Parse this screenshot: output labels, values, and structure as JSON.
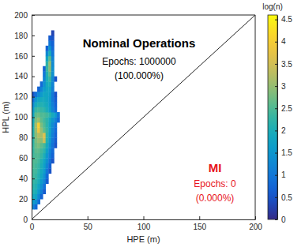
{
  "chart_data": {
    "type": "heatmap",
    "x_label": "HPE (m)",
    "y_label": "HPL (m)",
    "xlim": [
      0,
      200
    ],
    "xticks": [
      0,
      50,
      100,
      150,
      200
    ],
    "ylim": [
      0,
      200
    ],
    "yticks": [
      0,
      20,
      40,
      60,
      80,
      100,
      120,
      140,
      160,
      180,
      200
    ],
    "x_bins": [
      0,
      2.5,
      5,
      7.5,
      10,
      12.5,
      15,
      17.5,
      20,
      22.5,
      25
    ],
    "y_bins": [
      0,
      5,
      10,
      15,
      20,
      25,
      30,
      35,
      40,
      45,
      50,
      55,
      60,
      65,
      70,
      75,
      80,
      85,
      90,
      95,
      100,
      105,
      110,
      115,
      120,
      125,
      130,
      135,
      140,
      145,
      150,
      155,
      160,
      165,
      170,
      175,
      180,
      185
    ],
    "cells": [
      [
        null,
        null,
        null,
        null,
        null,
        null,
        null,
        null,
        null,
        null
      ],
      [
        null,
        null,
        null,
        null,
        null,
        null,
        null,
        null,
        null,
        null
      ],
      [
        1.2,
        0.8,
        null,
        null,
        null,
        null,
        null,
        null,
        null,
        null
      ],
      [
        1.6,
        1.4,
        0.9,
        null,
        null,
        null,
        null,
        null,
        null,
        null
      ],
      [
        1.9,
        1.8,
        1.3,
        0.7,
        null,
        null,
        null,
        null,
        null,
        null
      ],
      [
        2.1,
        2.0,
        1.6,
        1.1,
        0.6,
        null,
        null,
        null,
        null,
        null
      ],
      [
        2.2,
        2.1,
        1.8,
        1.4,
        0.9,
        null,
        null,
        null,
        null,
        null
      ],
      [
        2.3,
        2.2,
        2.0,
        1.6,
        1.2,
        0.6,
        null,
        null,
        null,
        null
      ],
      [
        2.4,
        2.3,
        2.1,
        1.8,
        1.4,
        0.8,
        null,
        null,
        null,
        null
      ],
      [
        2.4,
        2.4,
        2.2,
        1.9,
        1.6,
        1.0,
        0.5,
        null,
        null,
        null
      ],
      [
        2.5,
        2.4,
        2.3,
        2.0,
        1.7,
        1.2,
        0.7,
        null,
        null,
        null
      ],
      [
        2.5,
        2.5,
        2.4,
        2.1,
        1.8,
        1.4,
        0.9,
        0.5,
        null,
        null
      ],
      [
        2.4,
        2.5,
        2.5,
        2.3,
        2.0,
        1.5,
        1.1,
        0.7,
        null,
        null
      ],
      [
        2.3,
        2.6,
        2.6,
        2.4,
        2.2,
        1.7,
        1.2,
        0.8,
        null,
        null
      ],
      [
        2.3,
        2.7,
        2.8,
        2.6,
        2.4,
        1.9,
        1.4,
        0.9,
        0.5,
        null
      ],
      [
        2.2,
        2.8,
        3.0,
        2.9,
        3.4,
        2.1,
        1.6,
        1.0,
        0.6,
        null
      ],
      [
        2.2,
        2.9,
        3.2,
        3.1,
        3.6,
        2.2,
        1.7,
        1.1,
        0.7,
        null
      ],
      [
        2.1,
        3.0,
        3.8,
        3.0,
        2.6,
        2.3,
        1.8,
        1.2,
        0.8,
        null
      ],
      [
        2.0,
        3.1,
        4.0,
        2.8,
        2.5,
        2.2,
        1.8,
        1.3,
        0.9,
        null
      ],
      [
        1.9,
        2.8,
        3.0,
        2.6,
        2.4,
        2.2,
        1.9,
        1.5,
        1.2,
        0.8
      ],
      [
        1.8,
        2.6,
        2.7,
        2.5,
        2.5,
        2.4,
        2.2,
        1.9,
        1.6,
        1.0
      ],
      [
        1.6,
        2.3,
        2.4,
        2.3,
        2.2,
        2.0,
        1.7,
        1.2,
        0.8,
        null
      ],
      [
        1.3,
        1.9,
        2.1,
        2.1,
        2.0,
        1.9,
        1.6,
        1.1,
        0.7,
        null
      ],
      [
        0.9,
        1.5,
        1.8,
        1.9,
        1.9,
        1.8,
        1.6,
        1.0,
        0.6,
        null
      ],
      [
        0.5,
        0.9,
        1.3,
        1.6,
        1.8,
        1.8,
        1.7,
        1.0,
        0.5,
        null
      ],
      [
        null,
        null,
        0.7,
        1.2,
        1.6,
        1.8,
        1.8,
        1.1,
        null,
        null
      ],
      [
        null,
        null,
        null,
        0.8,
        1.4,
        1.9,
        2.0,
        1.2,
        null,
        null
      ],
      [
        null,
        null,
        null,
        null,
        1.2,
        2.0,
        2.3,
        1.3,
        0.5,
        null
      ],
      [
        null,
        null,
        null,
        null,
        1.0,
        2.1,
        2.6,
        1.4,
        null,
        null
      ],
      [
        null,
        null,
        null,
        null,
        0.7,
        2.3,
        2.9,
        1.4,
        null,
        null
      ],
      [
        null,
        null,
        null,
        null,
        null,
        2.2,
        3.0,
        1.3,
        null,
        null
      ],
      [
        null,
        null,
        null,
        null,
        null,
        1.8,
        2.6,
        1.2,
        null,
        null
      ],
      [
        null,
        null,
        null,
        null,
        null,
        1.3,
        2.0,
        1.0,
        null,
        null
      ],
      [
        null,
        null,
        null,
        null,
        null,
        0.7,
        1.5,
        0.8,
        null,
        null
      ],
      [
        null,
        null,
        null,
        null,
        null,
        null,
        1.0,
        0.7,
        null,
        null
      ],
      [
        null,
        null,
        null,
        null,
        null,
        null,
        0.6,
        0.5,
        null,
        null
      ],
      [
        null,
        null,
        null,
        null,
        null,
        null,
        null,
        0.3,
        null,
        null
      ]
    ],
    "colorbar": {
      "label": "log(n)",
      "lim": [
        0,
        4.6
      ],
      "ticks": [
        0,
        0.5,
        1,
        1.5,
        2,
        2.5,
        3,
        3.5,
        4,
        4.5
      ]
    },
    "reference_line": {
      "x": [
        0,
        200
      ],
      "y": [
        0,
        200
      ]
    },
    "annotations": [
      {
        "text": "Nominal Operations",
        "color": "#000000"
      },
      {
        "text": "Epochs: 1000000",
        "color": "#000000"
      },
      {
        "text": "(100.000%)",
        "color": "#000000"
      },
      {
        "text": "MI",
        "color": "#e8141c"
      },
      {
        "text": "Epochs: 0",
        "color": "#e8141c"
      },
      {
        "text": "(0.000%)",
        "color": "#e8141c"
      }
    ]
  }
}
